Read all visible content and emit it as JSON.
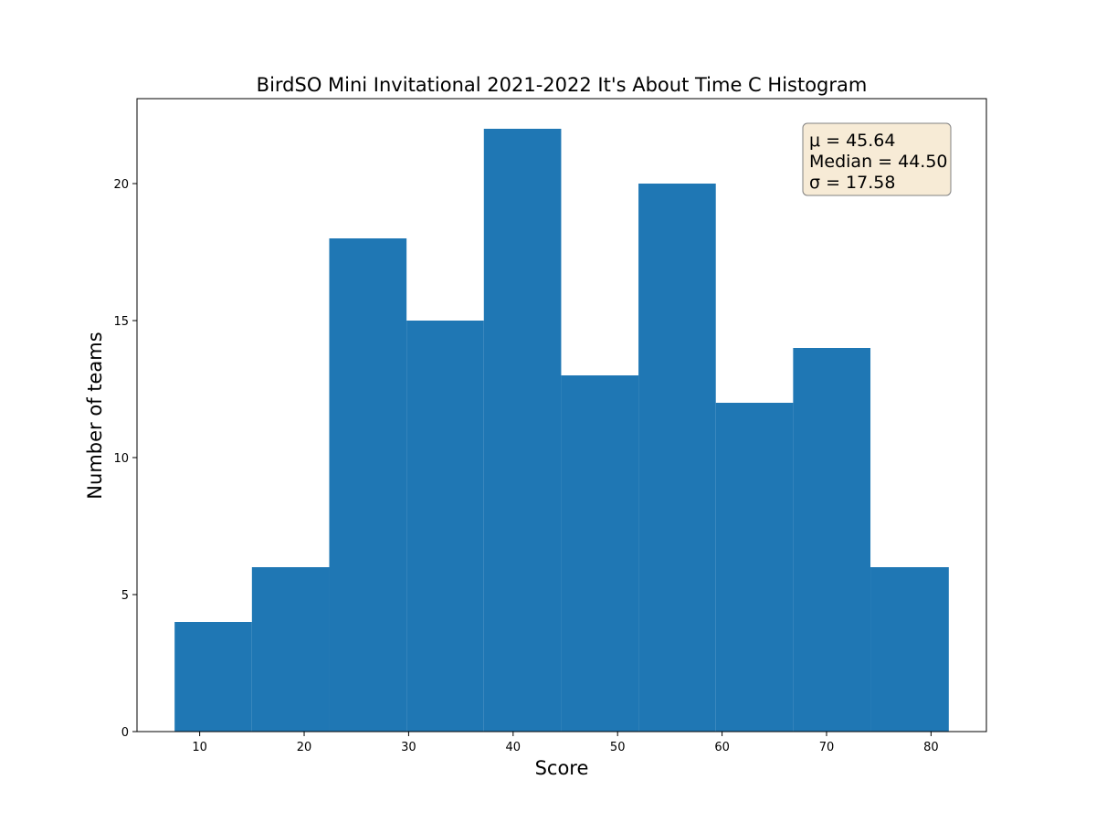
{
  "chart_data": {
    "type": "bar",
    "title": "BirdSO Mini Invitational 2021-2022 It's About Time C Histogram",
    "xlabel": "Score",
    "ylabel": "Number of teams",
    "bin_edges": [
      7.6,
      15.0,
      22.4,
      29.8,
      37.2,
      44.6,
      52.0,
      59.4,
      66.8,
      74.2,
      81.7
    ],
    "values": [
      4,
      6,
      18,
      15,
      22,
      13,
      20,
      12,
      14,
      6
    ],
    "xlim": [
      4.0,
      85.3
    ],
    "ylim": [
      0,
      23.1
    ],
    "xticks": [
      10,
      20,
      30,
      40,
      50,
      60,
      70,
      80
    ],
    "yticks": [
      0,
      5,
      10,
      15,
      20
    ],
    "grid": false,
    "bar_color": "#1f77b4",
    "stats_box": {
      "mean_label": "μ = 45.64",
      "median_label": "Median = 44.50",
      "sigma_label": "σ = 17.58",
      "facecolor": "#f7ebd6",
      "edgecolor": "#808080",
      "placement": "top-right"
    }
  }
}
